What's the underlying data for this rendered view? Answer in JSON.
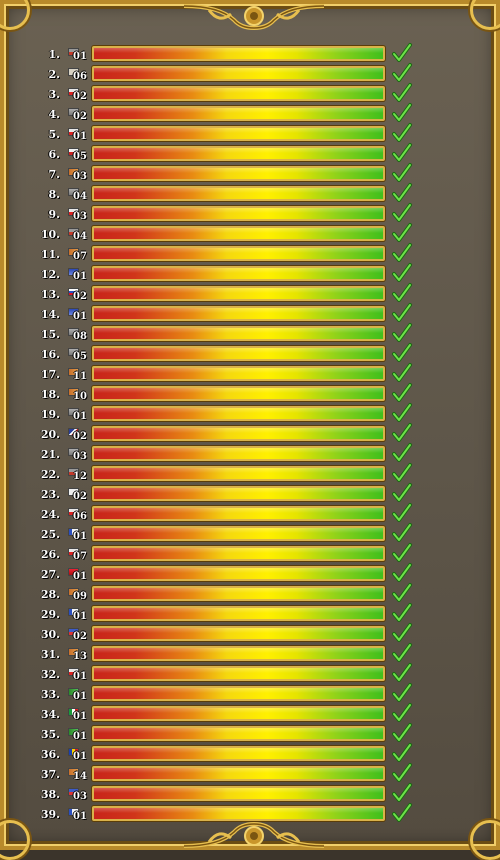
{
  "accent": "#d9b24a",
  "bar_colors": [
    "#c8241a",
    "#fff000",
    "#3fbf1c"
  ],
  "entries": [
    {
      "rank": "1.",
      "level": "01",
      "progress": 1.0,
      "flag": "flag-gray-red",
      "status_icon": "checkmark-icon"
    },
    {
      "rank": "2.",
      "level": "06",
      "progress": 1.0,
      "flag": "flag-plain",
      "status_icon": "checkmark-icon"
    },
    {
      "rank": "3.",
      "level": "02",
      "progress": 1.0,
      "flag": "flag-red-white",
      "status_icon": "checkmark-icon"
    },
    {
      "rank": "4.",
      "level": "02",
      "progress": 1.0,
      "flag": "flag-gray",
      "status_icon": "checkmark-icon"
    },
    {
      "rank": "5.",
      "level": "01",
      "progress": 1.0,
      "flag": "flag-red-white",
      "status_icon": "checkmark-icon"
    },
    {
      "rank": "6.",
      "level": "05",
      "progress": 1.0,
      "flag": "flag-white-red",
      "status_icon": "checkmark-icon"
    },
    {
      "rank": "7.",
      "level": "03",
      "progress": 1.0,
      "flag": "flag-orange",
      "status_icon": "checkmark-icon"
    },
    {
      "rank": "8.",
      "level": "04",
      "progress": 1.0,
      "flag": "flag-gray",
      "status_icon": "checkmark-icon"
    },
    {
      "rank": "9.",
      "level": "03",
      "progress": 1.0,
      "flag": "flag-red-white",
      "status_icon": "checkmark-icon"
    },
    {
      "rank": "10.",
      "level": "04",
      "progress": 1.0,
      "flag": "flag-gray-red",
      "status_icon": "checkmark-icon"
    },
    {
      "rank": "11.",
      "level": "07",
      "progress": 1.0,
      "flag": "flag-orange",
      "status_icon": "checkmark-icon"
    },
    {
      "rank": "12.",
      "level": "01",
      "progress": 1.0,
      "flag": "flag-blue",
      "status_icon": "checkmark-icon"
    },
    {
      "rank": "13.",
      "level": "02",
      "progress": 1.0,
      "flag": "flag-tricolor",
      "status_icon": "checkmark-icon"
    },
    {
      "rank": "14.",
      "level": "01",
      "progress": 1.0,
      "flag": "flag-blue",
      "status_icon": "checkmark-icon"
    },
    {
      "rank": "15.",
      "level": "08",
      "progress": 1.0,
      "flag": "flag-gray",
      "status_icon": "checkmark-icon"
    },
    {
      "rank": "16.",
      "level": "05",
      "progress": 1.0,
      "flag": "flag-gray",
      "status_icon": "checkmark-icon"
    },
    {
      "rank": "17.",
      "level": "11",
      "progress": 1.0,
      "flag": "flag-orange",
      "status_icon": "checkmark-icon"
    },
    {
      "rank": "18.",
      "level": "10",
      "progress": 1.0,
      "flag": "flag-orange",
      "status_icon": "checkmark-icon"
    },
    {
      "rank": "19.",
      "level": "01",
      "progress": 1.0,
      "flag": "flag-gray",
      "status_icon": "checkmark-icon"
    },
    {
      "rank": "20.",
      "level": "02",
      "progress": 1.0,
      "flag": "flag-union",
      "status_icon": "checkmark-icon"
    },
    {
      "rank": "21.",
      "level": "03",
      "progress": 1.0,
      "flag": "flag-gray",
      "status_icon": "checkmark-icon"
    },
    {
      "rank": "22.",
      "level": "12",
      "progress": 1.0,
      "flag": "flag-gray-red",
      "status_icon": "checkmark-icon"
    },
    {
      "rank": "23.",
      "level": "02",
      "progress": 1.0,
      "flag": "flag-white",
      "status_icon": "checkmark-icon"
    },
    {
      "rank": "24.",
      "level": "06",
      "progress": 1.0,
      "flag": "flag-red-white",
      "status_icon": "checkmark-icon"
    },
    {
      "rank": "25.",
      "level": "01",
      "progress": 1.0,
      "flag": "flag-blue-white",
      "status_icon": "checkmark-icon"
    },
    {
      "rank": "26.",
      "level": "07",
      "progress": 1.0,
      "flag": "flag-red-white",
      "status_icon": "checkmark-icon"
    },
    {
      "rank": "27.",
      "level": "01",
      "progress": 1.0,
      "flag": "flag-red",
      "status_icon": "checkmark-icon"
    },
    {
      "rank": "28.",
      "level": "09",
      "progress": 1.0,
      "flag": "flag-orange",
      "status_icon": "checkmark-icon"
    },
    {
      "rank": "29.",
      "level": "01",
      "progress": 1.0,
      "flag": "flag-blue-white",
      "status_icon": "checkmark-icon"
    },
    {
      "rank": "30.",
      "level": "02",
      "progress": 1.0,
      "flag": "flag-blue-red",
      "status_icon": "checkmark-icon"
    },
    {
      "rank": "31.",
      "level": "13",
      "progress": 1.0,
      "flag": "flag-orange",
      "status_icon": "checkmark-icon"
    },
    {
      "rank": "32.",
      "level": "01",
      "progress": 1.0,
      "flag": "flag-red-white",
      "status_icon": "checkmark-icon"
    },
    {
      "rank": "33.",
      "level": "01",
      "progress": 1.0,
      "flag": "flag-green",
      "status_icon": "checkmark-icon"
    },
    {
      "rank": "34.",
      "level": "01",
      "progress": 1.0,
      "flag": "flag-italy",
      "status_icon": "checkmark-icon"
    },
    {
      "rank": "35.",
      "level": "01",
      "progress": 1.0,
      "flag": "flag-green",
      "status_icon": "checkmark-icon"
    },
    {
      "rank": "36.",
      "level": "01",
      "progress": 1.0,
      "flag": "flag-romania",
      "status_icon": "checkmark-icon"
    },
    {
      "rank": "37.",
      "level": "14",
      "progress": 1.0,
      "flag": "flag-orange",
      "status_icon": "checkmark-icon"
    },
    {
      "rank": "38.",
      "level": "03",
      "progress": 1.0,
      "flag": "flag-blue-red",
      "status_icon": "checkmark-icon"
    },
    {
      "rank": "39.",
      "level": "01",
      "progress": 1.0,
      "flag": "flag-blue-white",
      "status_icon": "checkmark-icon"
    }
  ]
}
